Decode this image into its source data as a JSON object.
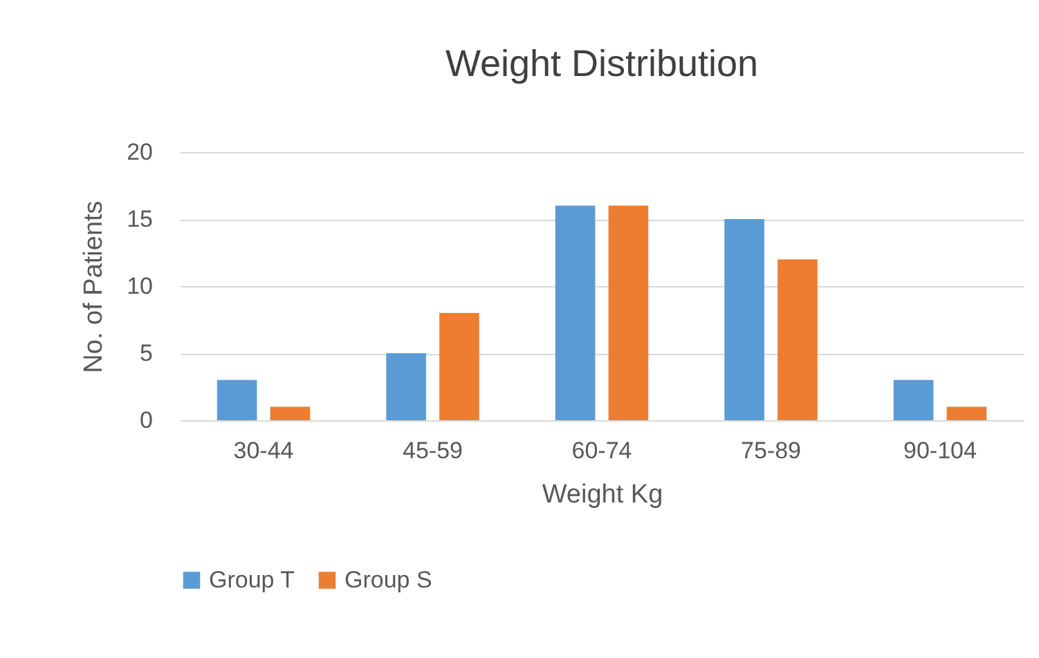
{
  "chart_data": {
    "type": "bar",
    "title": "Weight Distribution",
    "xlabel": "Weight Kg",
    "ylabel": "No. of Patients",
    "categories": [
      "30-44",
      "45-59",
      "60-74",
      "75-89",
      "90-104"
    ],
    "series": [
      {
        "name": "Group T",
        "color": "#5b9bd5",
        "values": [
          3,
          5,
          16,
          15,
          3
        ]
      },
      {
        "name": "Group S",
        "color": "#ed7d31",
        "values": [
          1,
          8,
          16,
          12,
          1
        ]
      }
    ],
    "ylim": [
      0,
      20
    ],
    "yticks": [
      0,
      5,
      10,
      15,
      20
    ],
    "grid": "y",
    "legend": "bottom"
  }
}
